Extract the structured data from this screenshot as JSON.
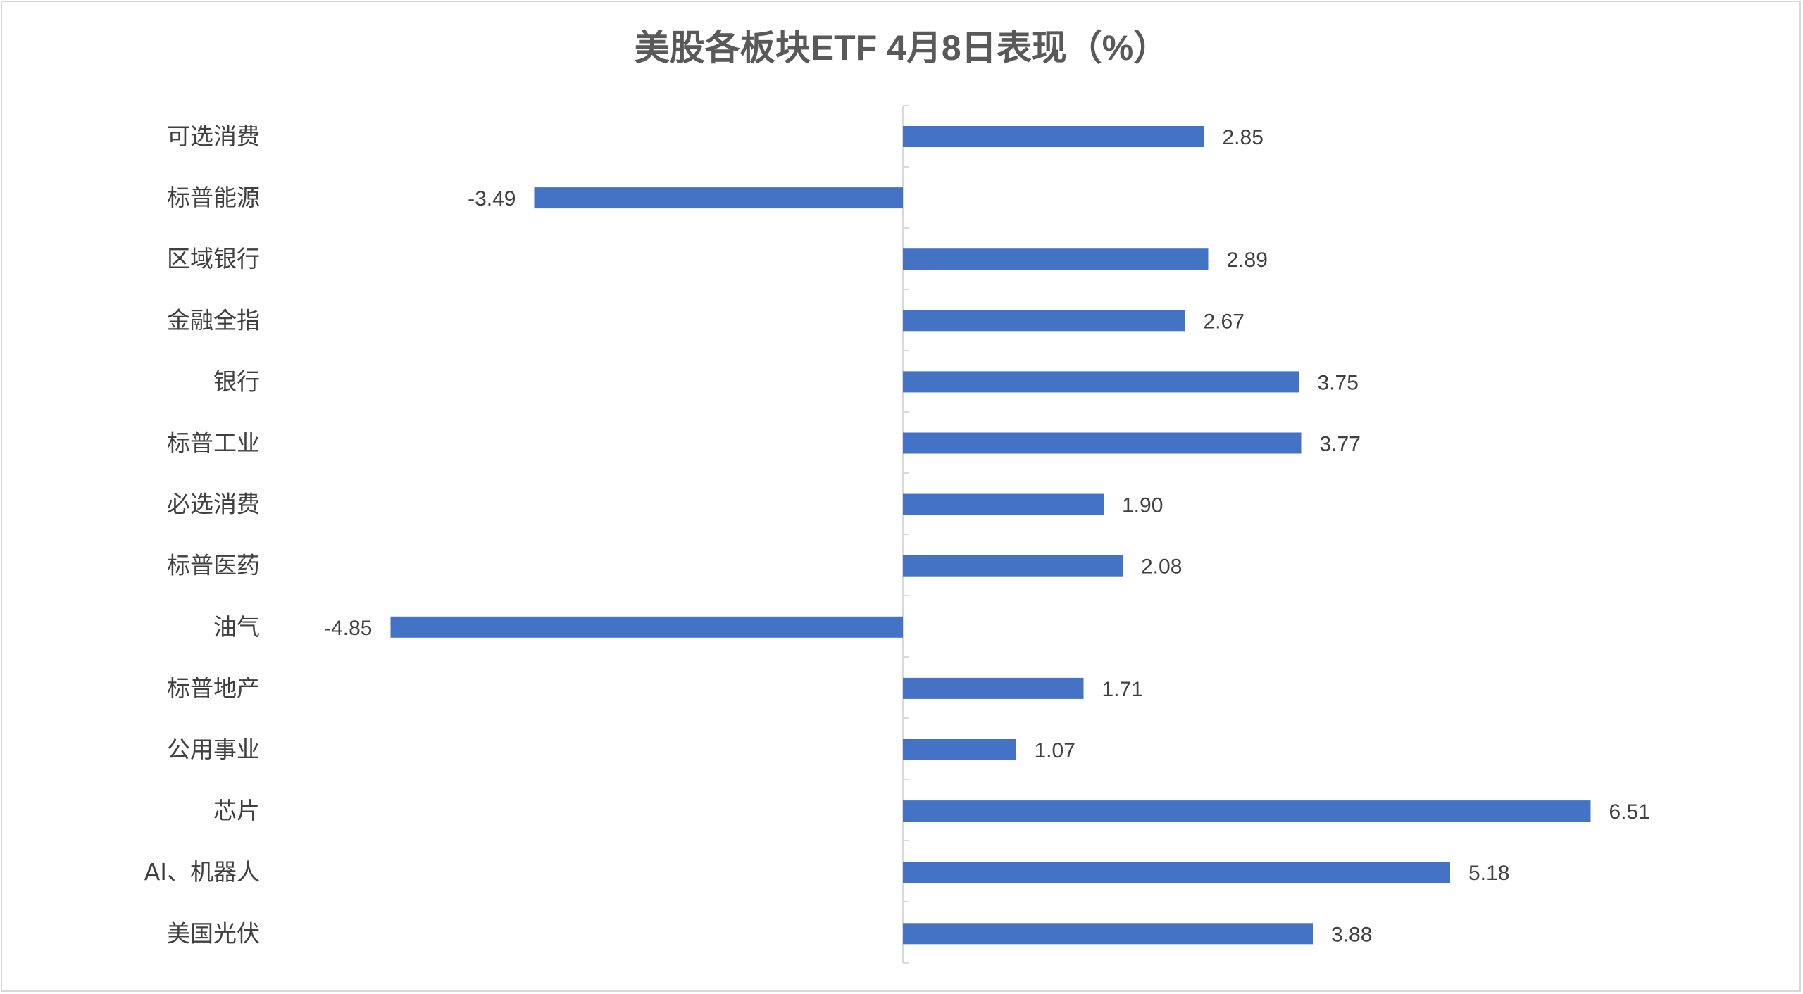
{
  "chart_data": {
    "type": "bar",
    "orientation": "horizontal",
    "title": "美股各板块ETF  4月8日表现（%）",
    "categories": [
      "可选消费",
      "标普能源",
      "区域银行",
      "金融全指",
      "银行",
      "标普工业",
      "必选消费",
      "标普医药",
      "油气",
      "标普地产",
      "公用事业",
      "芯片",
      "AI、机器人",
      "美国光伏"
    ],
    "values": [
      2.85,
      -3.49,
      2.89,
      2.67,
      3.75,
      3.77,
      1.9,
      2.08,
      -4.85,
      1.71,
      1.07,
      6.51,
      5.18,
      3.88
    ],
    "data_labels": [
      "2.85",
      "-3.49",
      "2.89",
      "2.67",
      "3.75",
      "3.77",
      "1.90",
      "2.08",
      "-4.85",
      "1.71",
      "1.07",
      "6.51",
      "5.18",
      "3.88"
    ],
    "bar_color": "#4472C4",
    "xlabel": "",
    "ylabel": "",
    "grid": false,
    "legend": "none"
  }
}
